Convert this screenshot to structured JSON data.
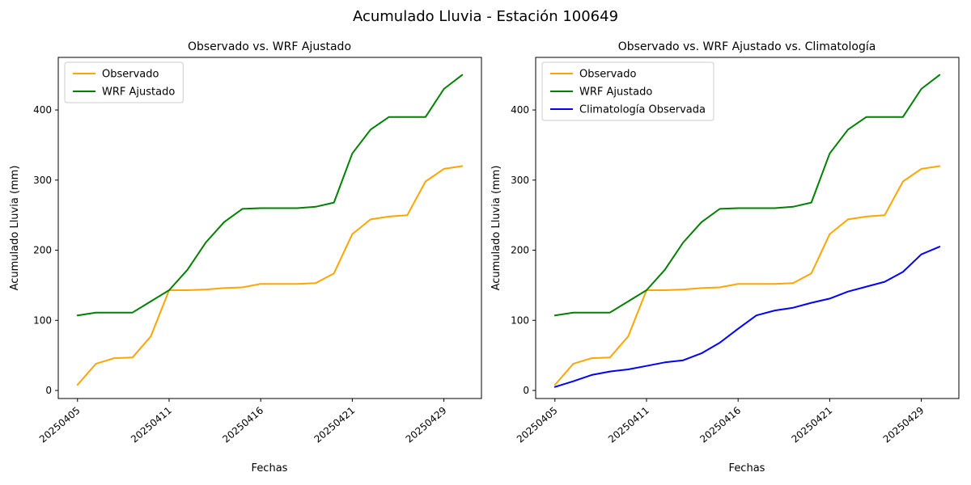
{
  "figure": {
    "title": "Acumulado Lluvia - Estación 100649"
  },
  "colors": {
    "observado": "#FFA500",
    "wrf_ajustado": "#008000",
    "climatologia": "#0000FF",
    "axis": "#000000",
    "legend_border": "#cccccc"
  },
  "chart_data": [
    {
      "type": "line",
      "title": "Observado vs. WRF Ajustado",
      "xlabel": "Fechas",
      "ylabel": "Acumulado Lluvia (mm)",
      "n_points": 22,
      "x_tick_positions": [
        0,
        5,
        10,
        15,
        20
      ],
      "x_tick_labels": [
        "20250405",
        "20250411",
        "20250416",
        "20250421",
        "20250429"
      ],
      "y_ticks": [
        0,
        100,
        200,
        300,
        400
      ],
      "xlim": [
        -1.05,
        22.05
      ],
      "ylim": [
        -11.5,
        475
      ],
      "grid": false,
      "legend_position": "upper-left",
      "series": [
        {
          "name": "Observado",
          "color": "#FFA500",
          "values": [
            8,
            38,
            46,
            47,
            77,
            143,
            143,
            144,
            146,
            147,
            152,
            152,
            152,
            153,
            167,
            223,
            244,
            248,
            250,
            298,
            316,
            320
          ]
        },
        {
          "name": "WRF Ajustado",
          "color": "#008000",
          "values": [
            107,
            111,
            111,
            111,
            127,
            143,
            172,
            211,
            240,
            259,
            260,
            260,
            260,
            262,
            268,
            338,
            372,
            390,
            390,
            390,
            430,
            450
          ]
        }
      ]
    },
    {
      "type": "line",
      "title": "Observado vs. WRF Ajustado vs. Climatología",
      "xlabel": "Fechas",
      "ylabel": "Acumulado Lluvia (mm)",
      "n_points": 22,
      "x_tick_positions": [
        0,
        5,
        10,
        15,
        20
      ],
      "x_tick_labels": [
        "20250405",
        "20250411",
        "20250416",
        "20250421",
        "20250429"
      ],
      "y_ticks": [
        0,
        100,
        200,
        300,
        400
      ],
      "xlim": [
        -1.05,
        22.05
      ],
      "ylim": [
        -11.5,
        475
      ],
      "grid": false,
      "legend_position": "upper-left",
      "series": [
        {
          "name": "Observado",
          "color": "#FFA500",
          "values": [
            8,
            38,
            46,
            47,
            77,
            143,
            143,
            144,
            146,
            147,
            152,
            152,
            152,
            153,
            167,
            223,
            244,
            248,
            250,
            298,
            316,
            320
          ]
        },
        {
          "name": "WRF Ajustado",
          "color": "#008000",
          "values": [
            107,
            111,
            111,
            111,
            127,
            143,
            172,
            211,
            240,
            259,
            260,
            260,
            260,
            262,
            268,
            338,
            372,
            390,
            390,
            390,
            430,
            450
          ]
        },
        {
          "name": "Climatología Observada",
          "color": "#0000FF",
          "values": [
            5,
            13,
            22,
            27,
            30,
            35,
            40,
            43,
            53,
            68,
            88,
            107,
            114,
            118,
            125,
            131,
            141,
            148,
            155,
            169,
            194,
            205
          ]
        }
      ]
    }
  ]
}
